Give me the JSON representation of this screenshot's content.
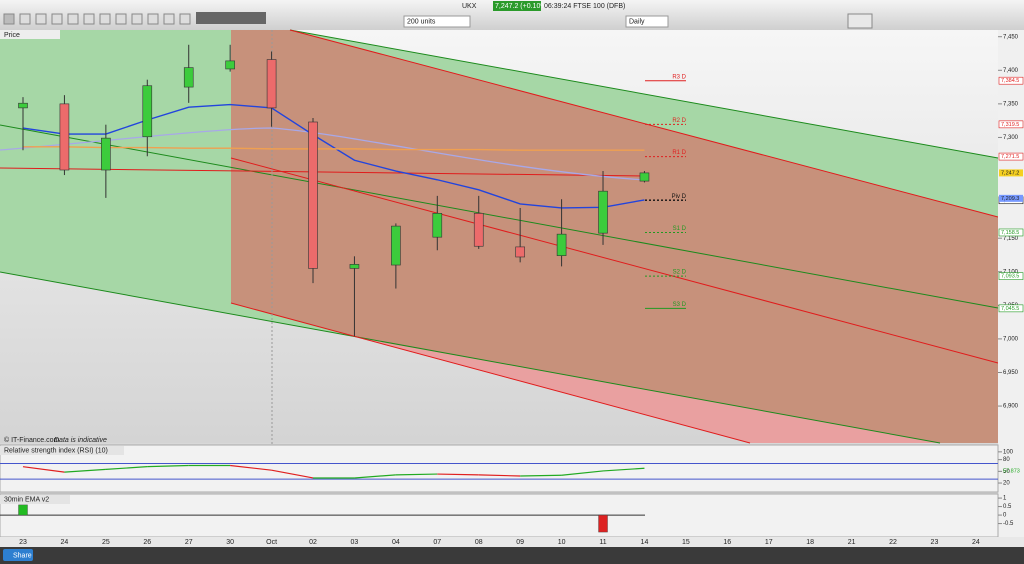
{
  "toolbar": {
    "instrument": "UKX",
    "price_change": "7,247.2 (+0.10%)",
    "market_info": "06:39:24 FTSE 100 (DFB)",
    "size": "200 units",
    "interval": "Daily"
  },
  "footer": {
    "share": "Share"
  },
  "chart_data": [
    {
      "type": "candlestick",
      "title": "Price",
      "source": "© IT-Finance.com",
      "note": "Data is indicative",
      "categories": [
        "23",
        "24",
        "25",
        "26",
        "27",
        "30",
        "Oct",
        "02",
        "03",
        "04",
        "07",
        "08",
        "09",
        "10",
        "11",
        "14",
        "15",
        "16",
        "17",
        "18",
        "21",
        "22",
        "23",
        "24"
      ],
      "open": [
        7344,
        7350,
        7251.5,
        7301,
        7375,
        7402,
        7416,
        7323,
        7105,
        7110,
        7151.5,
        7187,
        7137,
        7124,
        7157.5,
        7235,
        null,
        null,
        null,
        null,
        null,
        null,
        null,
        null
      ],
      "high": [
        7360,
        7363,
        7319,
        7386,
        7438,
        7438,
        7428,
        7329,
        7123,
        7172,
        7213,
        7213,
        7195,
        7208,
        7250,
        7250,
        null,
        null,
        null,
        null,
        null,
        null,
        null,
        null
      ],
      "low": [
        7281,
        7244,
        7210,
        7272,
        7351.5,
        7398,
        7316,
        7083,
        7004,
        7075,
        7132,
        7134,
        7114,
        7108,
        7140,
        7233,
        null,
        null,
        null,
        null,
        null,
        null,
        null,
        null
      ],
      "close": [
        7351,
        7251.5,
        7299,
        7377,
        7404,
        7414,
        7344,
        7105,
        7111,
        7168,
        7187,
        7138,
        7122,
        7156,
        7220,
        7247.2,
        null,
        null,
        null,
        null,
        null,
        null,
        null,
        null
      ],
      "up_color": "#3ccc3c",
      "down_color": "#ec6b6b",
      "series": [
        {
          "color": "#2244dd",
          "values": [
            7314,
            7305,
            7305,
            7326,
            7345,
            7349,
            7344,
            7304,
            7266,
            7250,
            7237,
            7222,
            7201,
            7195,
            7196,
            7207,
            null,
            null,
            null,
            null,
            null,
            null,
            null,
            null
          ]
        },
        {
          "color": "#f0a050",
          "values": [
            7286,
            7286,
            7285,
            7285,
            7284,
            7284,
            7283,
            7283,
            7283,
            7282,
            7282,
            7282,
            7281,
            7281,
            7281,
            7281,
            null,
            null,
            null,
            null,
            null,
            null,
            null,
            null
          ]
        }
      ],
      "ylim": [
        6845,
        7460
      ],
      "yticks": [
        {
          "value": 7450,
          "label": "7,450"
        },
        {
          "value": 7400,
          "label": "7,400"
        },
        {
          "value": 7350,
          "label": "7,350"
        },
        {
          "value": 7300,
          "label": "7,300"
        },
        {
          "value": 7150,
          "label": "7,150"
        },
        {
          "value": 7100,
          "label": "7,100"
        },
        {
          "value": 7050,
          "label": "7,050"
        },
        {
          "value": 7000,
          "label": "7,000"
        },
        {
          "value": 6950,
          "label": "6,950"
        },
        {
          "value": 6900,
          "label": "6,900"
        }
      ],
      "pivots": [
        {
          "name": "R3 D",
          "value": 7384.5,
          "label": "7,384.5",
          "color": "#e02020"
        },
        {
          "name": "R2 D",
          "value": 7319.5,
          "label": "7,319.5",
          "color": "#e02020"
        },
        {
          "name": "R1 D",
          "value": 7271.5,
          "label": "7,271.5",
          "color": "#e02020"
        },
        {
          "name": "Piv D",
          "value": 7206.5,
          "label": "7,206.5",
          "color": "#111111"
        },
        {
          "name": "S1 D",
          "value": 7158.5,
          "label": "7,158.5",
          "color": "#229922"
        },
        {
          "name": "S2 D",
          "value": 7093.5,
          "label": "7,093.5",
          "color": "#229922"
        },
        {
          "name": "S3 D",
          "value": 7045.5,
          "label": "7,045.5",
          "color": "#229922"
        }
      ],
      "price_labels": [
        {
          "value": 7247.2,
          "label": "7,247.2",
          "color": "#f5d020"
        },
        {
          "value": 7209.3,
          "label": "7,209.3",
          "color": "#7799ff"
        }
      ]
    },
    {
      "type": "line",
      "title": "Relative strength index (RSI) (10)",
      "values": [
        62,
        48,
        55,
        62,
        65,
        65,
        53,
        33,
        33,
        41,
        43,
        41,
        38,
        40,
        51,
        57.873,
        null,
        null,
        null,
        null,
        null,
        null,
        null,
        null
      ],
      "last_label": "57.873",
      "up_color": "#22aa22",
      "down_color": "#e02020",
      "band_color": "#4455cc",
      "bands": [
        70,
        30
      ],
      "ylim": [
        -3,
        115
      ],
      "yticks": [
        100,
        80,
        50,
        20
      ]
    },
    {
      "type": "bar",
      "title": "30min EMA v2",
      "values": [
        0.6,
        0,
        0,
        0,
        0,
        0,
        0,
        0,
        0,
        0,
        0,
        0,
        0,
        0,
        -1,
        0,
        null,
        null,
        null,
        null,
        null,
        null,
        null,
        null
      ],
      "up_color": "#22bb22",
      "down_color": "#dd2222",
      "ylim": [
        -1.29,
        1.24
      ],
      "yticks": [
        1,
        0.5,
        0,
        -0.5
      ]
    }
  ]
}
